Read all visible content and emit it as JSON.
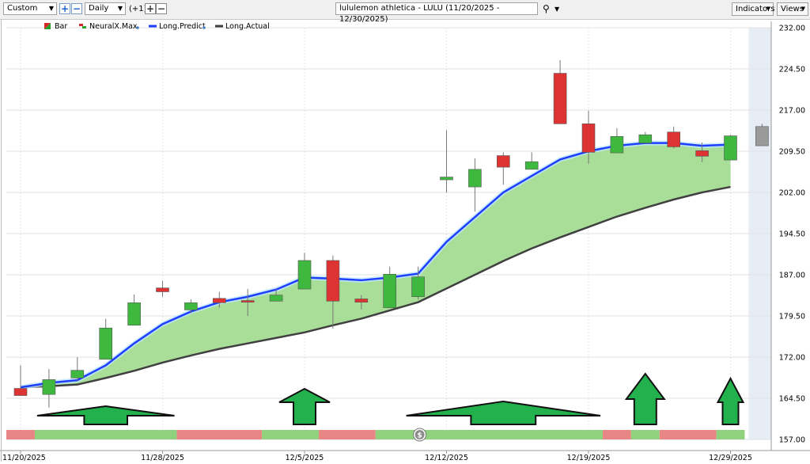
{
  "toolbar": {
    "layout_select": "Custom",
    "period_select": "Daily",
    "period_count": "(+1)",
    "symbol_field": "lululemon athletica - LULU (11/20/2025 - 12/30/2025)",
    "indicators_button": "Indicators",
    "views_button": "Views",
    "icons": [
      "plus-icon",
      "minus-icon",
      "search-icon",
      "dropdown-arrow-icon"
    ]
  },
  "legend": [
    {
      "label": "Bar",
      "color": "#2ca02c"
    },
    {
      "label": "NeuralX.Max",
      "color": "#d62728"
    },
    {
      "label": "Long.Predict",
      "color": "#1f3fff"
    },
    {
      "label": "Long.Actual",
      "color": "#404040"
    }
  ],
  "chart_data": {
    "type": "candlestick",
    "title": "lululemon athletica - LULU (11/20/2025 - 12/30/2025)",
    "y_ticks": [
      "232.00",
      "224.50",
      "217.00",
      "209.50",
      "202.00",
      "194.50",
      "187.00",
      "179.50",
      "172.00",
      "164.50",
      "157.00"
    ],
    "ylim": [
      157,
      232
    ],
    "x_ticks": [
      {
        "label": "11/20/2025",
        "index": 0
      },
      {
        "label": "11/28/2025",
        "index": 5
      },
      {
        "label": "12/5/2025",
        "index": 10
      },
      {
        "label": "12/12/2025",
        "index": 15
      },
      {
        "label": "12/19/2025",
        "index": 20
      },
      {
        "label": "12/29/2025",
        "index": 25
      }
    ],
    "candles": [
      {
        "o": 166.3,
        "h": 170.5,
        "l": 165.0,
        "c": 165.0
      },
      {
        "o": 165.2,
        "h": 169.8,
        "l": 162.8,
        "c": 167.9
      },
      {
        "o": 168.2,
        "h": 172.0,
        "l": 167.5,
        "c": 169.6
      },
      {
        "o": 171.6,
        "h": 179.0,
        "l": 171.6,
        "c": 177.3
      },
      {
        "o": 177.8,
        "h": 183.4,
        "l": 177.8,
        "c": 181.9
      },
      {
        "o": 184.6,
        "h": 185.9,
        "l": 183.0,
        "c": 183.9
      },
      {
        "o": 180.6,
        "h": 182.5,
        "l": 180.0,
        "c": 181.9
      },
      {
        "o": 182.7,
        "h": 183.9,
        "l": 181.0,
        "c": 181.9
      },
      {
        "o": 182.3,
        "h": 184.4,
        "l": 179.5,
        "c": 182.0
      },
      {
        "o": 182.2,
        "h": 184.4,
        "l": 182.2,
        "c": 183.3
      },
      {
        "o": 184.4,
        "h": 191.0,
        "l": 184.4,
        "c": 189.6
      },
      {
        "o": 189.6,
        "h": 190.5,
        "l": 177.2,
        "c": 182.2
      },
      {
        "o": 182.6,
        "h": 183.3,
        "l": 180.7,
        "c": 182.0
      },
      {
        "o": 181.0,
        "h": 188.5,
        "l": 181.0,
        "c": 187.1
      },
      {
        "o": 183.0,
        "h": 188.5,
        "l": 182.5,
        "c": 186.6
      },
      {
        "o": 204.3,
        "h": 213.3,
        "l": 202.0,
        "c": 204.8
      },
      {
        "o": 203.0,
        "h": 208.2,
        "l": 198.5,
        "c": 206.2
      },
      {
        "o": 208.7,
        "h": 209.3,
        "l": 203.4,
        "c": 206.6
      },
      {
        "o": 206.2,
        "h": 209.3,
        "l": 206.2,
        "c": 207.6
      },
      {
        "o": 223.7,
        "h": 226.1,
        "l": 214.5,
        "c": 214.5
      },
      {
        "o": 214.5,
        "h": 216.9,
        "l": 207.2,
        "c": 209.3
      },
      {
        "o": 209.2,
        "h": 213.7,
        "l": 209.2,
        "c": 212.2
      },
      {
        "o": 211.0,
        "h": 213.0,
        "l": 211.0,
        "c": 212.5
      },
      {
        "o": 213.0,
        "h": 214.0,
        "l": 210.0,
        "c": 210.3
      },
      {
        "o": 209.6,
        "h": 211.1,
        "l": 207.5,
        "c": 208.6
      },
      {
        "o": 207.9,
        "h": 212.5,
        "l": 207.9,
        "c": 212.3
      }
    ],
    "forecast_candle": {
      "o": 210.5,
      "h": 214.5,
      "l": 210.5,
      "c": 214.0
    },
    "series": [
      {
        "name": "Long.Predict",
        "values": [
          166.5,
          167.3,
          167.8,
          170.5,
          174.5,
          178.0,
          180.3,
          182.0,
          183.0,
          184.3,
          186.5,
          186.3,
          186.0,
          186.5,
          187.2,
          193.0,
          197.5,
          202.0,
          205.0,
          208.0,
          209.5,
          210.5,
          211.0,
          211.0,
          210.5,
          210.7
        ]
      },
      {
        "name": "Long.Actual",
        "values": [
          166.5,
          166.7,
          167.0,
          168.2,
          169.5,
          171.0,
          172.3,
          173.5,
          174.5,
          175.5,
          176.5,
          177.8,
          179.0,
          180.5,
          182.0,
          184.5,
          187.0,
          189.5,
          191.8,
          193.8,
          195.7,
          197.6,
          199.2,
          200.7,
          202.0,
          203.0
        ]
      }
    ],
    "signal_arrows": [
      {
        "type": "flat",
        "from": 1,
        "to": 5
      },
      {
        "type": "arrow",
        "at": 10
      },
      {
        "type": "flat",
        "from": 14,
        "to": 20
      },
      {
        "type": "arrow",
        "at": 22
      },
      {
        "type": "arrow",
        "at": 25
      }
    ],
    "signal_bar": [
      {
        "from": 0,
        "to": 1,
        "color": "#e88686"
      },
      {
        "from": 1,
        "to": 6,
        "color": "#8fd17c"
      },
      {
        "from": 6,
        "to": 9,
        "color": "#e88686"
      },
      {
        "from": 9,
        "to": 11,
        "color": "#8fd17c"
      },
      {
        "from": 11,
        "to": 13,
        "color": "#e88686"
      },
      {
        "from": 13,
        "to": 21,
        "color": "#8fd17c"
      },
      {
        "from": 21,
        "to": 22,
        "color": "#e88686"
      },
      {
        "from": 22,
        "to": 23,
        "color": "#8fd17c"
      },
      {
        "from": 23,
        "to": 25,
        "color": "#e88686"
      },
      {
        "from": 25,
        "to": 26,
        "color": "#8fd17c"
      }
    ],
    "grid": true,
    "colors": {
      "up": "#3fb83f",
      "down": "#dd3333",
      "predict": "#1f3fff",
      "actual": "#404040",
      "fill": "#a3dc92",
      "arrow": "#22b14c",
      "forecast_zone": "#e6edf5"
    }
  }
}
